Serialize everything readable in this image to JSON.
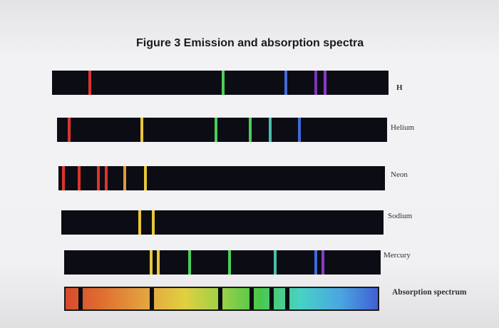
{
  "title": "Figure 3 Emission and absorption spectra",
  "spectra": [
    {
      "label": "H",
      "lines": [
        {
          "pos": 0.108,
          "color": "#e0332e"
        },
        {
          "pos": 0.505,
          "color": "#4ccd58"
        },
        {
          "pos": 0.69,
          "color": "#3f6ad8"
        },
        {
          "pos": 0.78,
          "color": "#7a38b8"
        },
        {
          "pos": 0.808,
          "color": "#8a3ac8"
        }
      ]
    },
    {
      "label": "Helium",
      "lines": [
        {
          "pos": 0.032,
          "color": "#e0332e"
        },
        {
          "pos": 0.252,
          "color": "#e8c63a"
        },
        {
          "pos": 0.478,
          "color": "#4ccd58"
        },
        {
          "pos": 0.58,
          "color": "#4ccd58"
        },
        {
          "pos": 0.642,
          "color": "#48bfae"
        },
        {
          "pos": 0.73,
          "color": "#3f6ad8"
        }
      ]
    },
    {
      "label": "Neon",
      "lines": [
        {
          "pos": 0.012,
          "color": "#e0332e"
        },
        {
          "pos": 0.06,
          "color": "#e0332e"
        },
        {
          "pos": 0.118,
          "color": "#e0332e"
        },
        {
          "pos": 0.142,
          "color": "#e0332e"
        },
        {
          "pos": 0.198,
          "color": "#e09a3a"
        },
        {
          "pos": 0.262,
          "color": "#e8c63a"
        }
      ]
    },
    {
      "label": "Sodium",
      "lines": [
        {
          "pos": 0.24,
          "color": "#e8c63a"
        },
        {
          "pos": 0.28,
          "color": "#e8c63a"
        }
      ]
    },
    {
      "label": "Mercury",
      "lines": [
        {
          "pos": 0.27,
          "color": "#e8c63a"
        },
        {
          "pos": 0.292,
          "color": "#e8c63a"
        },
        {
          "pos": 0.393,
          "color": "#4ccd58"
        },
        {
          "pos": 0.518,
          "color": "#4ccd58"
        },
        {
          "pos": 0.662,
          "color": "#48bfae"
        },
        {
          "pos": 0.79,
          "color": "#3f6ad8"
        },
        {
          "pos": 0.812,
          "color": "#8a3ac8"
        }
      ]
    },
    {
      "label": "Absorption spectrum",
      "lines": [
        {
          "pos": 0.04,
          "color": "#0c0d14"
        },
        {
          "pos": 0.27,
          "color": "#0c0d14"
        },
        {
          "pos": 0.488,
          "color": "#0c0d14"
        },
        {
          "pos": 0.588,
          "color": "#0c0d14"
        },
        {
          "pos": 0.654,
          "color": "#0c0d14"
        },
        {
          "pos": 0.704,
          "color": "#0c0d14"
        }
      ]
    }
  ]
}
